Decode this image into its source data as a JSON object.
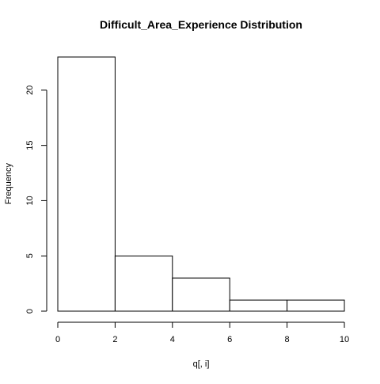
{
  "chart_data": {
    "type": "bar",
    "title": "Difficult_Area_Experience Distribution",
    "xlabel": "q[, i]",
    "ylabel": "Frequency",
    "bins": [
      {
        "start": 0,
        "end": 2,
        "count": 23
      },
      {
        "start": 2,
        "end": 4,
        "count": 5
      },
      {
        "start": 4,
        "end": 6,
        "count": 3
      },
      {
        "start": 6,
        "end": 8,
        "count": 1
      },
      {
        "start": 8,
        "end": 10,
        "count": 1
      }
    ],
    "xlim": [
      0,
      10
    ],
    "ylim": [
      0,
      23
    ],
    "x_ticks": [
      0,
      2,
      4,
      6,
      8,
      10
    ],
    "y_ticks": [
      0,
      5,
      10,
      15,
      20
    ],
    "grid": false,
    "colors": {
      "bar_fill": "#ffffff",
      "bar_stroke": "#000000"
    }
  }
}
